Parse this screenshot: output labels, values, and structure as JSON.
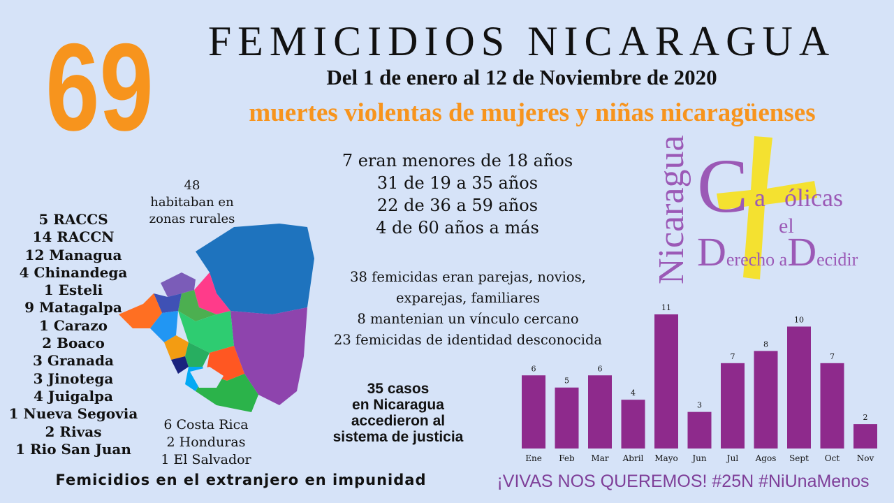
{
  "headline": {
    "number": "69",
    "title": "FEMICIDIOS NICARAGUA",
    "subtitle": "Del 1 de enero al 12 de Noviembre de 2020",
    "tagline": "muertes violentas de mujeres y niñas nicaragüenses"
  },
  "ages": [
    "7 eran menores de 18 años",
    "31 de 19 a 35 años",
    "22 de 36 a 59 años",
    "4 de 60 años a más"
  ],
  "rural": [
    "48",
    "habitaban en",
    "zonas rurales"
  ],
  "departments": [
    "5 RACCS",
    "14 RACCN",
    "12 Managua",
    "4 Chinandega",
    "1 Esteli",
    "9 Matagalpa",
    "1 Carazo",
    "2 Boaco",
    "3 Granada",
    "3 Jinotega",
    "4 Juigalpa",
    "1 Nueva Segovia",
    "2 Rivas",
    "1 Rio San Juan"
  ],
  "abroad": [
    "6 Costa Rica",
    "2 Honduras",
    "1 El Salvador"
  ],
  "femicidas": [
    "38 femicidas eran parejas, novios,",
    "exparejas, familiares",
    "8 mantenian un vínculo cercano",
    "23 femicidas de identidad desconocida"
  ],
  "justice": [
    "35 casos",
    "en Nicaragua",
    "accedieron al",
    "sistema de justicia"
  ],
  "footer": {
    "left": "Femicidios en el extranjero en impunidad",
    "right": "¡VIVAS NOS QUEREMOS! #25N #NiUnaMenos"
  },
  "logo": {
    "vertical": "Nicaragua",
    "line1_big": "C",
    "line1_rest": "a   ólicas",
    "line2": "el",
    "line3_big1": "D",
    "line3_mid": "erecho a",
    "line3_big2": "D",
    "line3_end": "ecidir"
  },
  "colors": {
    "orange": "#f7941d",
    "purple": "#8e2a8c",
    "logo_purple": "#9b59b6",
    "cross_yellow": "#f4e130",
    "background": "#d6e3f8"
  },
  "chart_data": {
    "type": "bar",
    "categories": [
      "Ene",
      "Feb",
      "Mar",
      "Abril",
      "Mayo",
      "Jun",
      "Jul",
      "Agos",
      "Sept",
      "Oct",
      "Nov"
    ],
    "values": [
      6,
      5,
      6,
      4,
      11,
      3,
      7,
      8,
      10,
      7,
      2
    ],
    "ylim": [
      0,
      11
    ],
    "bar_color": "#8e2a8c",
    "grid": false,
    "data_labels": true
  }
}
